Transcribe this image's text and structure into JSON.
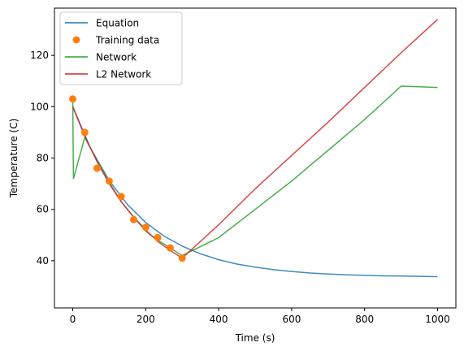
{
  "chart_data": {
    "type": "line",
    "xlabel": "Time (s)",
    "ylabel": "Temperature (C)",
    "xlim": [
      -50,
      1050
    ],
    "ylim": [
      21.6,
      138.4
    ],
    "xticks": [
      0,
      200,
      400,
      600,
      800,
      1000
    ],
    "yticks": [
      40,
      60,
      80,
      100,
      120
    ],
    "legend_position": "top-left",
    "grid": false,
    "series": [
      {
        "name": "Equation",
        "kind": "line",
        "color": "#1f77b4",
        "x": [
          0,
          50,
          100,
          150,
          200,
          250,
          300,
          350,
          400,
          450,
          500,
          550,
          600,
          650,
          700,
          750,
          800,
          850,
          900,
          950,
          1000
        ],
        "y": [
          100.0,
          83.5,
          71.2,
          61.9,
          54.9,
          49.6,
          45.7,
          42.7,
          40.4,
          38.7,
          37.5,
          36.5,
          35.8,
          35.2,
          34.8,
          34.5,
          34.3,
          34.1,
          34.0,
          33.9,
          33.8
        ]
      },
      {
        "name": "Training data",
        "kind": "scatter",
        "color": "#ff7f0e",
        "x": [
          0,
          33,
          67,
          100,
          133,
          167,
          200,
          233,
          267,
          300
        ],
        "y": [
          103,
          90,
          76,
          71,
          65,
          56,
          53,
          49,
          45,
          41
        ]
      },
      {
        "name": "Network",
        "kind": "line",
        "color": "#2ca02c",
        "x": [
          0,
          2,
          33,
          67,
          100,
          133,
          167,
          200,
          233,
          267,
          300,
          400,
          500,
          600,
          700,
          800,
          900,
          1000
        ],
        "y": [
          103,
          72,
          88,
          79,
          70.5,
          63,
          57,
          51.5,
          48,
          45,
          42,
          49,
          60,
          71,
          83,
          95,
          108,
          107.5
        ]
      },
      {
        "name": "L2 Network",
        "kind": "line",
        "color": "#d62728",
        "x": [
          0,
          33,
          67,
          100,
          133,
          167,
          200,
          233,
          267,
          300,
          400,
          500,
          600,
          700,
          800,
          900,
          1000
        ],
        "y": [
          100,
          88.5,
          78.5,
          70,
          63,
          57,
          52,
          47.5,
          44,
          41,
          54,
          68,
          81,
          94,
          107.5,
          121,
          134
        ]
      }
    ]
  }
}
